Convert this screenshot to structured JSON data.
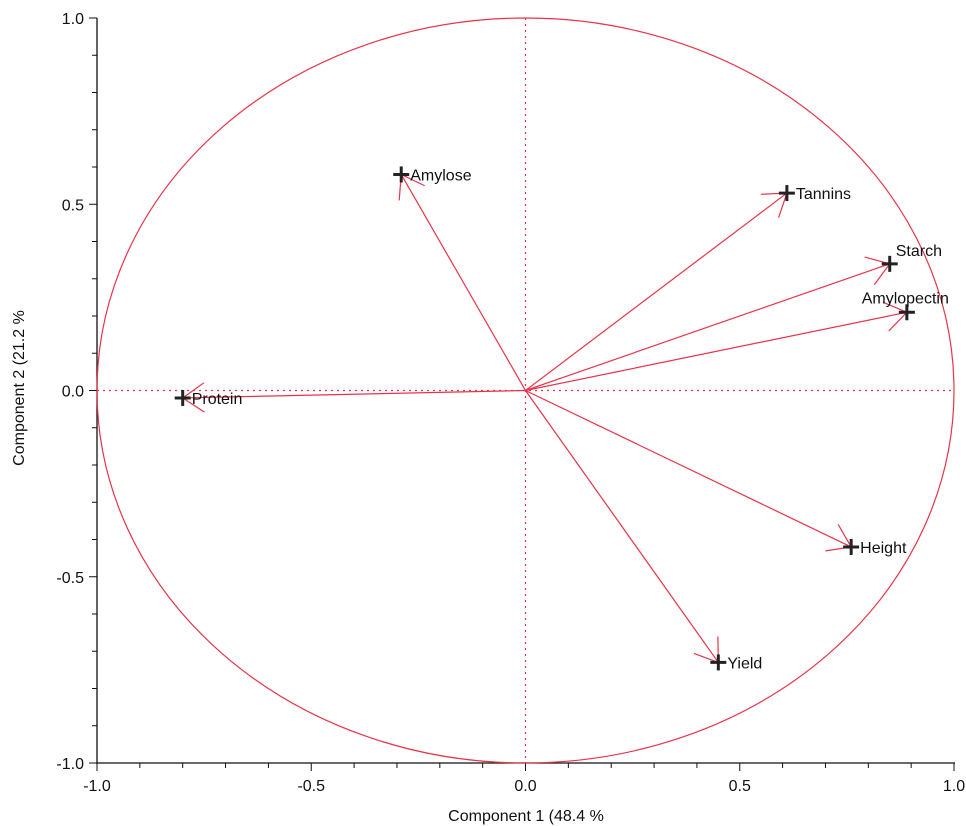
{
  "chart_data": {
    "type": "scatter",
    "subtype": "pca-correlation-circle",
    "title": "",
    "xlabel": "Component 1  (48.4 %",
    "ylabel": "Component 2  (21.2 %",
    "xlim": [
      -1.0,
      1.0
    ],
    "ylim": [
      -1.0,
      1.0
    ],
    "x_ticks": [
      {
        "value": -1.0,
        "label": "-1.0"
      },
      {
        "value": -0.5,
        "label": "-0.5"
      },
      {
        "value": 0.0,
        "label": "0.0"
      },
      {
        "value": 0.5,
        "label": "0.5"
      },
      {
        "value": 1.0,
        "label": "1.0"
      }
    ],
    "y_ticks": [
      {
        "value": 1.0,
        "label": "1.0"
      },
      {
        "value": 0.5,
        "label": "0.5"
      },
      {
        "value": 0.0,
        "label": "0.0"
      },
      {
        "value": -0.5,
        "label": "-0.5"
      },
      {
        "value": -1.0,
        "label": "-1.0"
      }
    ],
    "grid": false,
    "unit_circle": true,
    "zero_lines": "dotted",
    "color": "#e8334a",
    "marker_color": "#222222",
    "points": [
      {
        "label": "Amylose",
        "x": -0.29,
        "y": 0.58
      },
      {
        "label": "Tannins",
        "x": 0.61,
        "y": 0.53
      },
      {
        "label": "Starch",
        "x": 0.85,
        "y": 0.34
      },
      {
        "label": "Amylopectin",
        "x": 0.89,
        "y": 0.21
      },
      {
        "label": "Protein",
        "x": -0.8,
        "y": -0.02
      },
      {
        "label": "Height",
        "x": 0.76,
        "y": -0.42
      },
      {
        "label": "Yield",
        "x": 0.45,
        "y": -0.73
      }
    ]
  }
}
